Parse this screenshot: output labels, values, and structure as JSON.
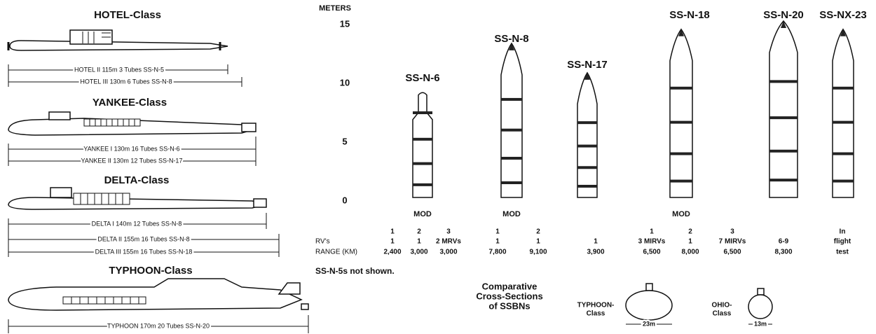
{
  "subs": [
    {
      "class": "HOTEL-Class",
      "lines": [
        "HOTEL II 115m 3 Tubes SS-N-5",
        "HOTEL III 130m 6 Tubes SS-N-8"
      ]
    },
    {
      "class": "YANKEE-Class",
      "lines": [
        "YANKEE I 130m 16 Tubes SS-N-6",
        "YANKEE II 130m 12 Tubes SS-N-17"
      ]
    },
    {
      "class": "DELTA-Class",
      "lines": [
        "DELTA I 140m 12 Tubes SS-N-8",
        "DELTA II 155m 16 Tubes SS-N-8",
        "DELTA III 155m 16 Tubes SS-N-18"
      ]
    },
    {
      "class": "TYPHOON-Class",
      "lines": [
        "TYPHOON 170m 20 Tubes SS-N-20"
      ]
    }
  ],
  "scale": {
    "unit": "METERS",
    "ticks": [
      15,
      10,
      5,
      0
    ],
    "lim": [
      0,
      15
    ]
  },
  "missiles": [
    {
      "name": "SS-N-6",
      "height": 9.0,
      "mod": "MOD"
    },
    {
      "name": "SS-N-8",
      "height": 13.1,
      "mod": "MOD"
    },
    {
      "name": "SS-N-17",
      "height": 10.6
    },
    {
      "name": "SS-N-18",
      "height": 14.3,
      "mod": "MOD"
    },
    {
      "name": "SS-N-20",
      "height": 15.0
    },
    {
      "name": "SS-NX-23",
      "height": 14.3
    }
  ],
  "table": {
    "row_labels": [
      "RV's",
      "RANGE (KM)"
    ],
    "columns": [
      [
        "1",
        "1",
        "2,400"
      ],
      [
        "2",
        "1",
        "3,000"
      ],
      [
        "3",
        "2 MRVs",
        "3,000"
      ],
      [
        "1",
        "1",
        "7,800"
      ],
      [
        "2",
        "1",
        "9,100"
      ],
      [
        "1",
        "3,900"
      ],
      [
        "1",
        "3 MIRVs",
        "6,500"
      ],
      [
        "2",
        "1",
        "8,000"
      ],
      [
        "3",
        "7 MIRVs",
        "6,500"
      ],
      [
        "6-9",
        "8,300"
      ],
      [
        "In",
        "flight",
        "test"
      ]
    ]
  },
  "footnote": "SS-N-5s not shown.",
  "cross_sections": {
    "title": [
      "Comparative",
      "Cross-Sections",
      "of SSBNs"
    ],
    "typhoon": {
      "label": [
        "TYPHOON-",
        "Class"
      ],
      "width": "23m"
    },
    "ohio": {
      "label": [
        "OHIO-",
        "Class"
      ],
      "width": "13m"
    }
  }
}
